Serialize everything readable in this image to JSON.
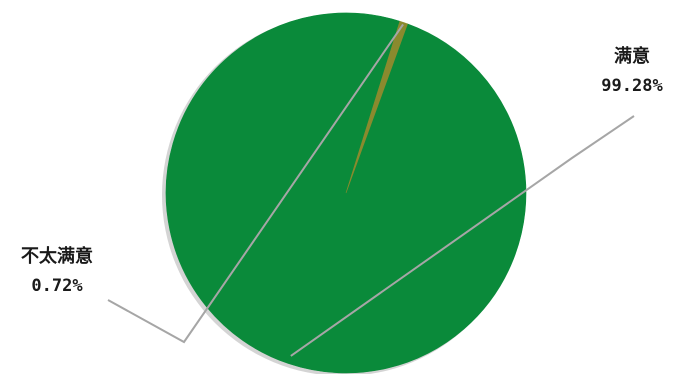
{
  "chart_data": {
    "type": "pie",
    "categories": [
      "满意",
      "不太满意"
    ],
    "values": [
      99.28,
      0.72
    ],
    "value_labels": [
      "99.28%",
      "0.72%"
    ],
    "colors": [
      "#0a8a3a",
      "#8a8a2e"
    ],
    "legend": "none",
    "data_labels": "outside-with-leader-lines"
  }
}
